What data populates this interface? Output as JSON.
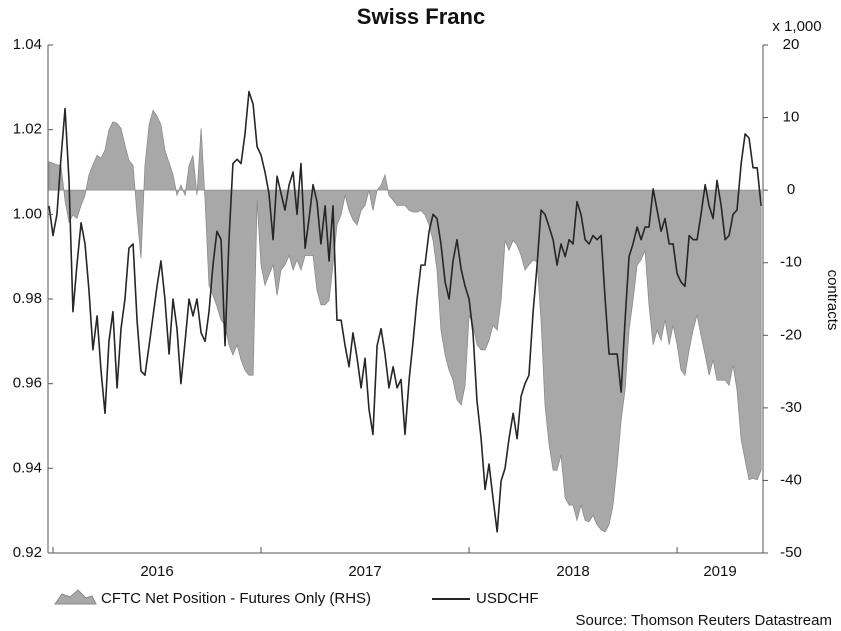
{
  "chart_data": {
    "type": "line",
    "title": "Swiss Franc",
    "y2_unit": "x 1,000",
    "y2label": "contracts",
    "source": "Source: Thomson Reuters Datastream",
    "xlim": [
      2015.976,
      2019.413
    ],
    "xticks": [
      2016,
      2017,
      2018,
      2019
    ],
    "ylim": [
      0.92,
      1.04
    ],
    "yticks": [
      0.92,
      0.94,
      0.96,
      0.98,
      {
        "value": 1,
        "label": "1.00"
      },
      1.02,
      1.04
    ],
    "y2lim": [
      -50,
      20
    ],
    "y2ticks": [
      -50,
      -40,
      -30,
      -20,
      -10,
      0,
      10,
      20
    ],
    "x": [
      2015.981,
      2016,
      2016.019,
      2016.038,
      2016.058,
      2016.077,
      2016.096,
      2016.115,
      2016.135,
      2016.154,
      2016.173,
      2016.192,
      2016.212,
      2016.231,
      2016.25,
      2016.269,
      2016.288,
      2016.308,
      2016.327,
      2016.346,
      2016.365,
      2016.385,
      2016.404,
      2016.423,
      2016.442,
      2016.462,
      2016.481,
      2016.5,
      2016.519,
      2016.538,
      2016.558,
      2016.577,
      2016.596,
      2016.615,
      2016.635,
      2016.654,
      2016.673,
      2016.692,
      2016.712,
      2016.731,
      2016.75,
      2016.769,
      2016.788,
      2016.808,
      2016.827,
      2016.846,
      2016.865,
      2016.885,
      2016.904,
      2016.923,
      2016.942,
      2016.962,
      2016.981,
      2017,
      2017.019,
      2017.038,
      2017.058,
      2017.077,
      2017.096,
      2017.115,
      2017.135,
      2017.154,
      2017.173,
      2017.192,
      2017.212,
      2017.231,
      2017.25,
      2017.269,
      2017.288,
      2017.308,
      2017.327,
      2017.346,
      2017.365,
      2017.385,
      2017.404,
      2017.423,
      2017.442,
      2017.462,
      2017.481,
      2017.5,
      2017.519,
      2017.538,
      2017.558,
      2017.577,
      2017.596,
      2017.615,
      2017.635,
      2017.654,
      2017.673,
      2017.692,
      2017.712,
      2017.731,
      2017.75,
      2017.769,
      2017.788,
      2017.808,
      2017.827,
      2017.846,
      2017.865,
      2017.885,
      2017.904,
      2017.923,
      2017.942,
      2017.962,
      2017.981,
      2018,
      2018.019,
      2018.038,
      2018.058,
      2018.077,
      2018.096,
      2018.115,
      2018.135,
      2018.154,
      2018.173,
      2018.192,
      2018.212,
      2018.231,
      2018.25,
      2018.269,
      2018.288,
      2018.308,
      2018.327,
      2018.346,
      2018.365,
      2018.385,
      2018.404,
      2018.423,
      2018.442,
      2018.462,
      2018.481,
      2018.5,
      2018.519,
      2018.538,
      2018.558,
      2018.577,
      2018.596,
      2018.615,
      2018.635,
      2018.654,
      2018.673,
      2018.692,
      2018.712,
      2018.731,
      2018.75,
      2018.769,
      2018.788,
      2018.808,
      2018.827,
      2018.846,
      2018.865,
      2018.885,
      2018.904,
      2018.923,
      2018.942,
      2018.962,
      2018.981,
      2019,
      2019.019,
      2019.038,
      2019.058,
      2019.077,
      2019.096,
      2019.115,
      2019.135,
      2019.154,
      2019.173,
      2019.192,
      2019.212,
      2019.231,
      2019.25,
      2019.269,
      2019.288,
      2019.308,
      2019.327,
      2019.346,
      2019.365,
      2019.385,
      2019.404
    ],
    "series": [
      {
        "name": "CFTC Net Position - Futures Only (RHS)",
        "type": "area",
        "axis": "y2",
        "color": "#a8a8a8",
        "values": [
          3.9,
          3.7,
          3.5,
          3.4,
          -1.4,
          -4.4,
          -3.4,
          -3.9,
          -2.1,
          -0.7,
          2.1,
          3.5,
          4.8,
          4.4,
          5.5,
          8.3,
          9.4,
          9.2,
          8.5,
          6.2,
          4.1,
          3.4,
          -3.4,
          -9.4,
          3.4,
          9.0,
          11.0,
          10.2,
          9.0,
          5.5,
          3.8,
          2.1,
          -0.7,
          0.7,
          -0.7,
          3.4,
          4.8,
          -0.7,
          8.5,
          -1.4,
          -13.1,
          -14.5,
          -16.0,
          -17.9,
          -18.6,
          -21.3,
          -22.7,
          -21.3,
          -23.4,
          -24.8,
          -25.5,
          -25.5,
          -1.4,
          -10.3,
          -13.1,
          -11.7,
          -10.3,
          -14.5,
          -11.0,
          -10.3,
          -9.0,
          -11.0,
          -9.6,
          -11.0,
          -9.0,
          -9.0,
          -9.0,
          -13.8,
          -15.8,
          -15.8,
          -15.2,
          -10.3,
          -4.8,
          -3.4,
          -0.7,
          -2.8,
          -4.1,
          -4.8,
          -2.8,
          -2.1,
          0,
          -2.8,
          0,
          0.7,
          2.1,
          -0.7,
          -1.4,
          -2.1,
          -2.1,
          -2.1,
          -2.8,
          -3.0,
          -3.0,
          -2.8,
          -3.4,
          -4.8,
          -6.9,
          -11.0,
          -19.3,
          -22.7,
          -24.8,
          -26.2,
          -28.9,
          -29.6,
          -26.9,
          -17.2,
          -18.6,
          -21.3,
          -22.0,
          -22.0,
          -20.7,
          -18.6,
          -19.3,
          -15.2,
          -6.9,
          -8.3,
          -6.9,
          -7.6,
          -9.0,
          -11.0,
          -10.3,
          -9.6,
          -9.9,
          -17.9,
          -29.6,
          -35.1,
          -38.6,
          -38.6,
          -36.5,
          -42.4,
          -43.4,
          -43.4,
          -45.5,
          -43.4,
          -45.5,
          -45.7,
          -44.8,
          -46.1,
          -46.8,
          -47.1,
          -46.1,
          -43.4,
          -37.9,
          -31.7,
          -27.5,
          -19.3,
          -15.2,
          -10.3,
          -9.6,
          -8.3,
          -15.8,
          -21.3,
          -19.3,
          -20.7,
          -17.9,
          -21.3,
          -18.6,
          -21.3,
          -24.8,
          -25.5,
          -22.0,
          -19.3,
          -17.2,
          -20.0,
          -22.7,
          -25.5,
          -23.4,
          -26.2,
          -26.2,
          -26.2,
          -26.9,
          -24.1,
          -27.5,
          -34.4,
          -37.2,
          -39.9,
          -39.7,
          -39.9,
          -38.6
        ]
      },
      {
        "name": "USDCHF",
        "type": "line",
        "color": "#262626",
        "values": [
          1.002,
          0.995,
          1.0,
          1.013,
          1.025,
          1.008,
          0.977,
          0.988,
          0.998,
          0.993,
          0.982,
          0.968,
          0.976,
          0.963,
          0.953,
          0.97,
          0.977,
          0.959,
          0.973,
          0.98,
          0.992,
          0.993,
          0.975,
          0.963,
          0.962,
          0.969,
          0.976,
          0.983,
          0.989,
          0.98,
          0.967,
          0.98,
          0.973,
          0.96,
          0.97,
          0.98,
          0.976,
          0.98,
          0.972,
          0.97,
          0.977,
          0.988,
          0.996,
          0.994,
          0.969,
          0.994,
          1.012,
          1.013,
          1.012,
          1.019,
          1.029,
          1.026,
          1.016,
          1.014,
          1.01,
          1.005,
          0.994,
          1.009,
          1.005,
          1.001,
          1.007,
          1.01,
          1.0,
          1.012,
          0.992,
          0.999,
          1.007,
          1.003,
          0.993,
          1.002,
          0.989,
          1.002,
          0.975,
          0.975,
          0.969,
          0.964,
          0.972,
          0.966,
          0.959,
          0.966,
          0.954,
          0.948,
          0.969,
          0.973,
          0.967,
          0.959,
          0.964,
          0.959,
          0.961,
          0.948,
          0.961,
          0.97,
          0.98,
          0.988,
          0.988,
          0.996,
          1.0,
          0.999,
          0.993,
          0.984,
          0.98,
          0.989,
          0.994,
          0.987,
          0.983,
          0.98,
          0.972,
          0.956,
          0.947,
          0.935,
          0.941,
          0.933,
          0.925,
          0.937,
          0.94,
          0.947,
          0.953,
          0.947,
          0.957,
          0.96,
          0.962,
          0.977,
          0.988,
          1.001,
          1.0,
          0.997,
          0.994,
          0.988,
          0.993,
          0.99,
          0.994,
          0.993,
          1.003,
          1.0,
          0.994,
          0.993,
          0.995,
          0.994,
          0.995,
          0.98,
          0.967,
          0.967,
          0.967,
          0.958,
          0.975,
          0.99,
          0.993,
          0.997,
          0.994,
          0.997,
          0.997,
          1.006,
          1.001,
          0.996,
          0.999,
          0.993,
          0.993,
          0.986,
          0.984,
          0.983,
          0.995,
          0.994,
          0.994,
          1.0,
          1.007,
          1.002,
          0.999,
          1.008,
          1.002,
          0.994,
          0.995,
          1.0,
          1.001,
          1.012,
          1.019,
          1.018,
          1.011,
          1.011,
          1.002
        ]
      }
    ]
  }
}
